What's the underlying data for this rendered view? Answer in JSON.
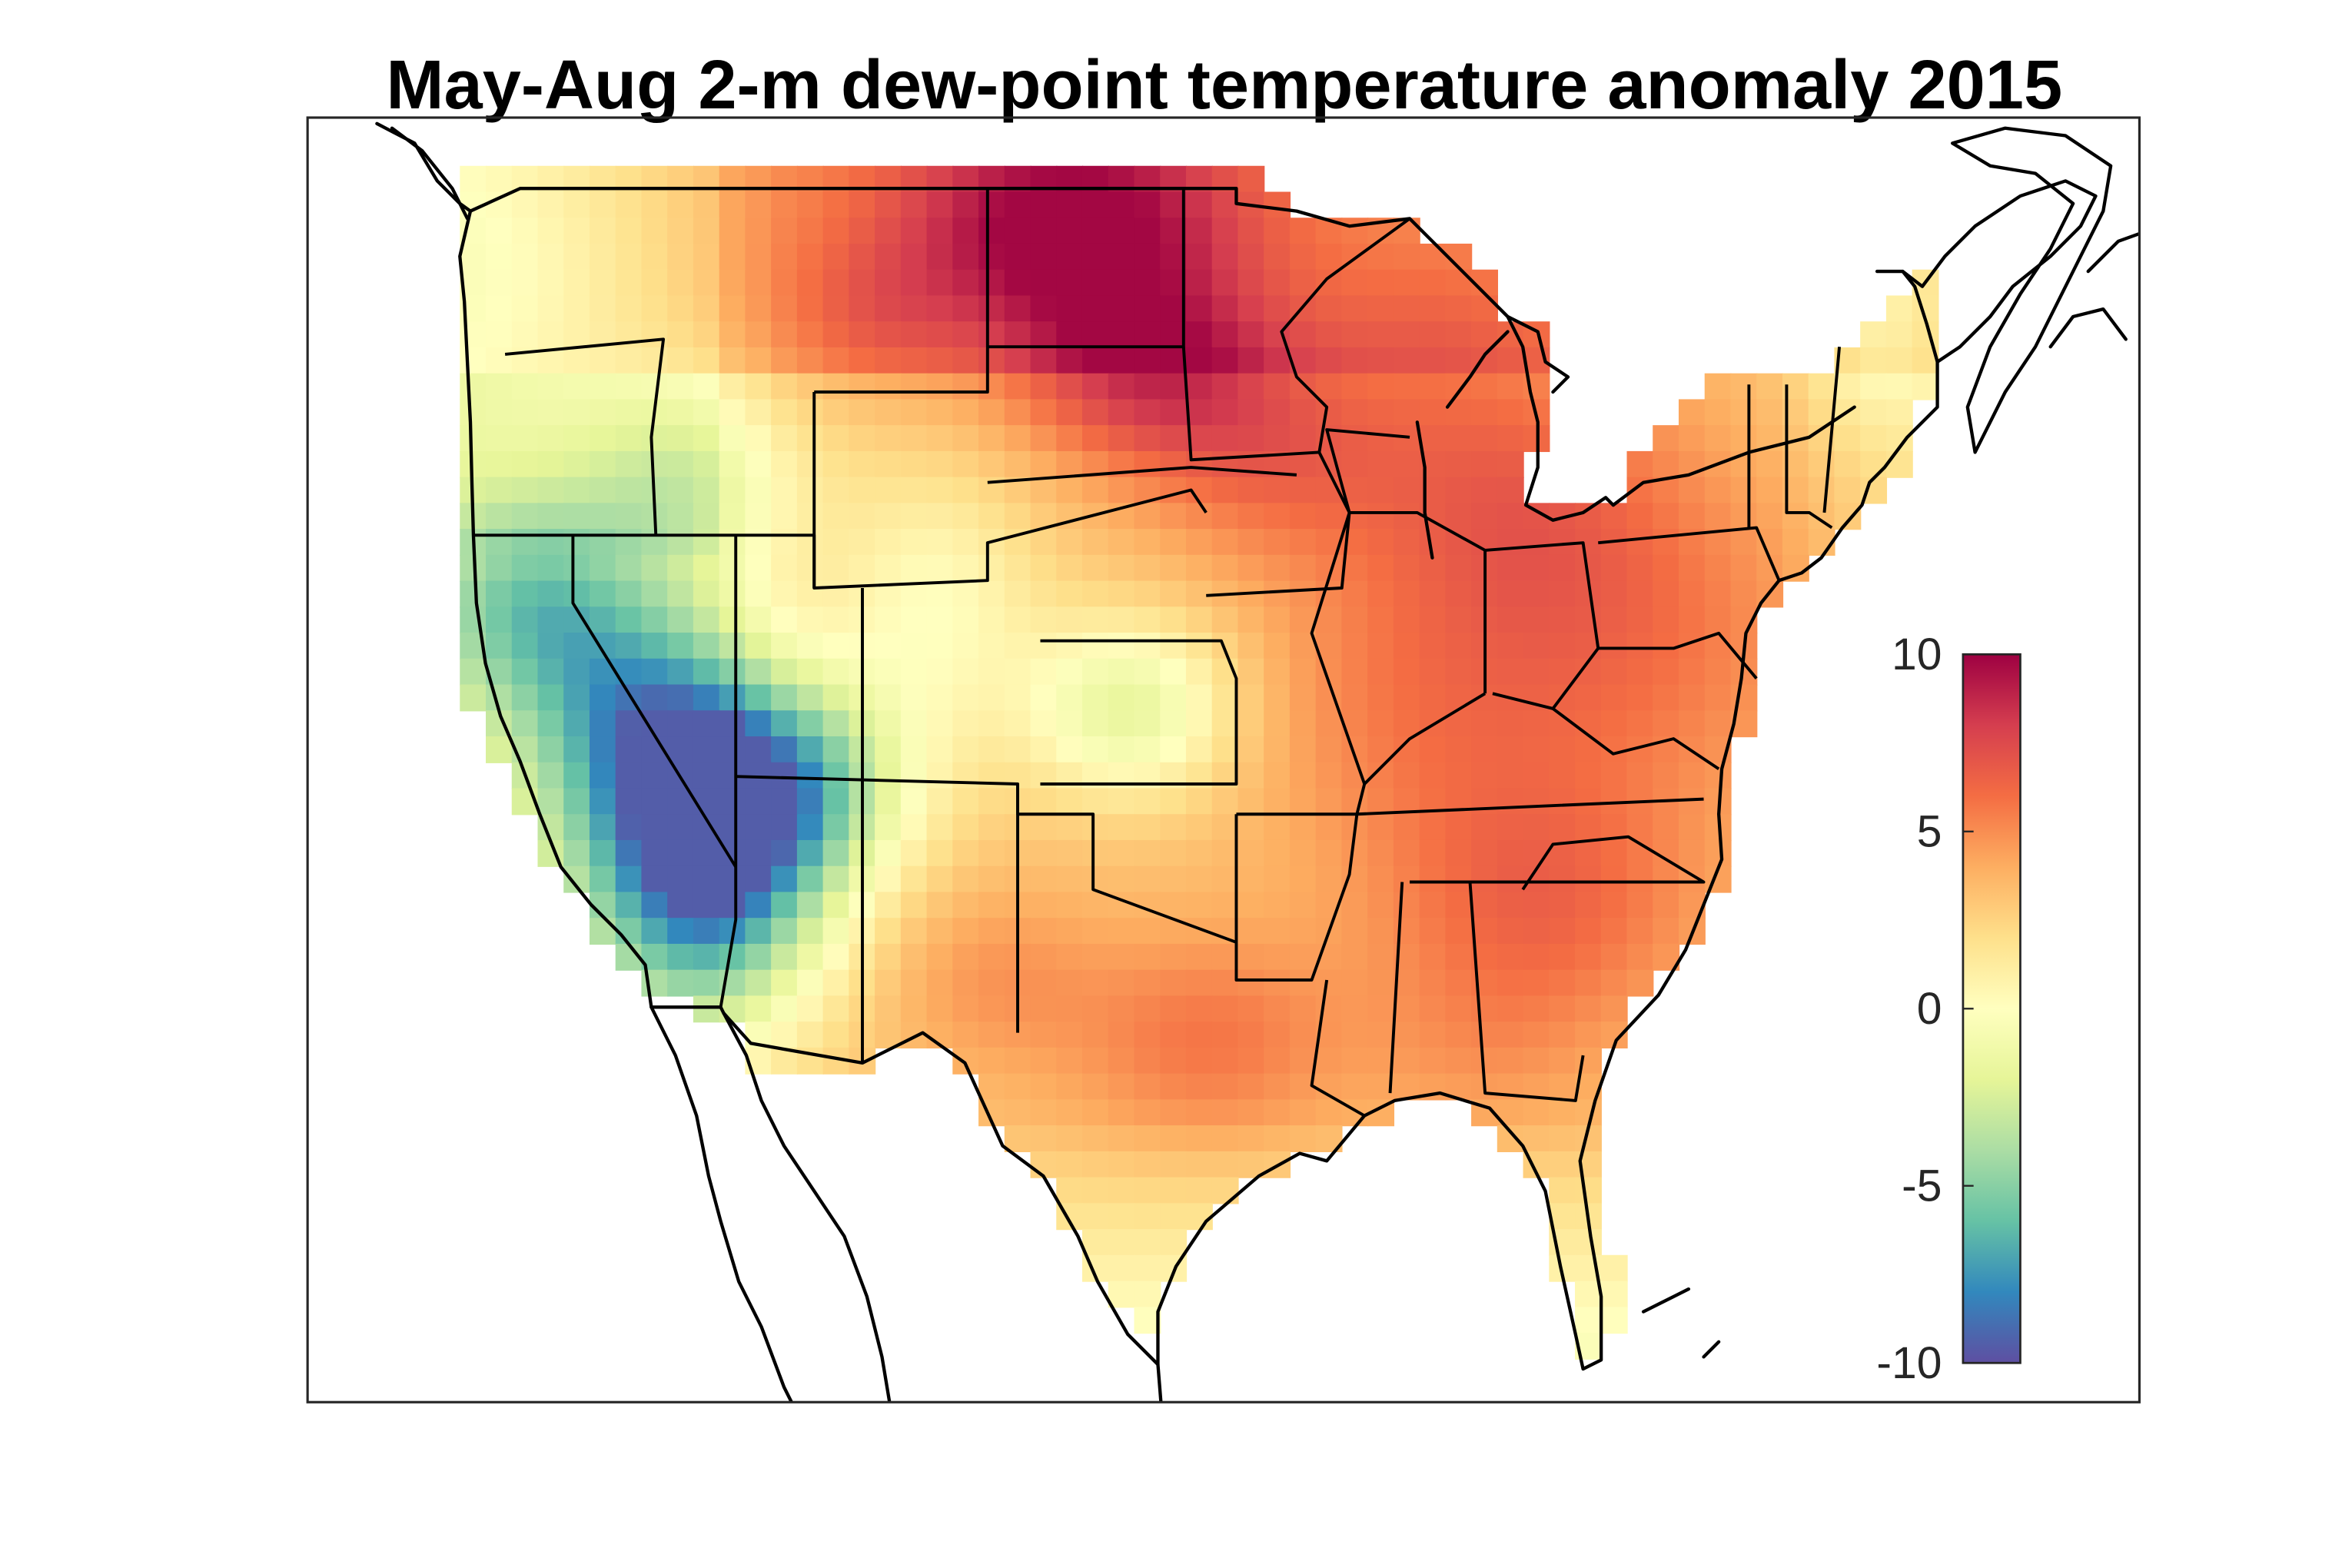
{
  "chart_data": {
    "type": "heatmap",
    "title": "May-Aug 2-m dew-point temperature anomaly 2015",
    "colorbar": {
      "min": -10,
      "max": 10,
      "ticks": [
        {
          "value": 10,
          "label": "10"
        },
        {
          "value": 5,
          "label": "5"
        },
        {
          "value": 0,
          "label": "0"
        },
        {
          "value": -5,
          "label": "-5"
        },
        {
          "value": -10,
          "label": "-10"
        }
      ],
      "colormap": [
        "#5e4fa2",
        "#3288bd",
        "#66c2a5",
        "#abdda4",
        "#e6f598",
        "#ffffbf",
        "#fee08b",
        "#fdae61",
        "#f46d43",
        "#d53e4f",
        "#9e0142"
      ]
    },
    "grid": false
  }
}
